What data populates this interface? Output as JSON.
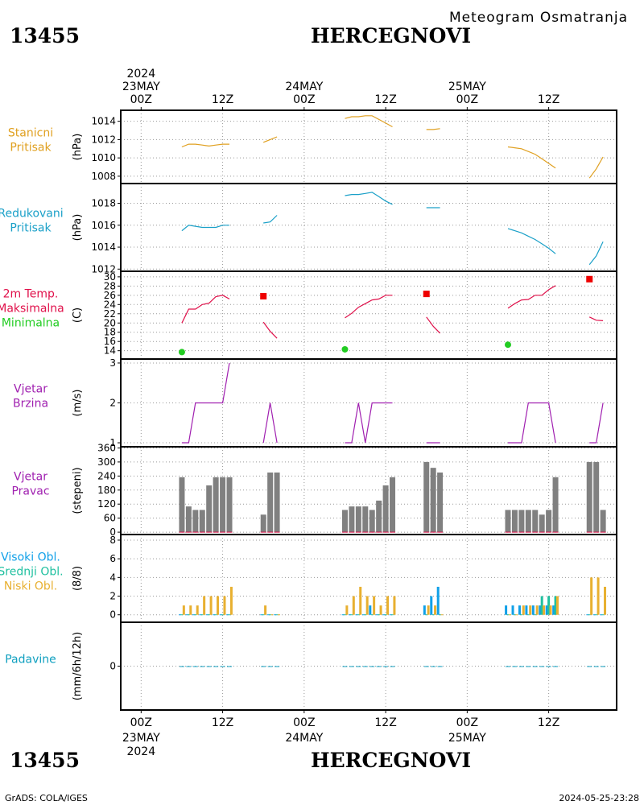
{
  "header": {
    "station_id": "13455",
    "station_name": "HERCEGNOVI",
    "product": "Meteogram Osmatranja"
  },
  "footer": {
    "station_id": "13455",
    "station_name": "HERCEGNOVI",
    "credit": "GrADS: COLA/IGES",
    "timestamp": "2024-05-25-23:28"
  },
  "colors": {
    "station_pressure": "#e0a020",
    "reduced_pressure": "#1aa0c8",
    "temperature": "#e0104a",
    "max_marker": "#ee0000",
    "min_marker": "#22cc22",
    "wind": "#a020b0",
    "wind_dir_bar": "#808080",
    "cloud_low": "#e8b030",
    "cloud_mid": "#20c0a0",
    "cloud_high": "#10a0e8",
    "precip": "#10a0c0"
  },
  "time_axis": {
    "top_ticks": [
      "00Z",
      "12Z",
      "00Z",
      "12Z",
      "00Z",
      "12Z"
    ],
    "top_dates": [
      {
        "hour": 0,
        "lines": [
          "2024",
          "23MAY"
        ]
      },
      {
        "hour": 24,
        "lines": [
          "24MAY"
        ]
      },
      {
        "hour": 48,
        "lines": [
          "25MAY"
        ]
      }
    ],
    "bottom_dates": [
      {
        "hour": 0,
        "lines": [
          "23MAY",
          "2024"
        ]
      },
      {
        "hour": 24,
        "lines": [
          "24MAY"
        ]
      },
      {
        "hour": 48,
        "lines": [
          "25MAY"
        ]
      }
    ],
    "tick_hours": [
      0,
      12,
      24,
      36,
      48,
      60
    ],
    "range_hours": [
      -3,
      70
    ]
  },
  "chart_data": [
    {
      "type": "line",
      "panel": "station_pressure",
      "label_lines": [
        "Stanicni",
        "Pritisak"
      ],
      "ylabel": "(hPa)",
      "ylim": [
        1007.2,
        1015.2
      ],
      "yticks": [
        1008,
        1010,
        1012,
        1014
      ],
      "segments": [
        {
          "x": [
            6,
            7,
            8,
            9,
            10,
            11,
            12,
            13
          ],
          "y": [
            1011.2,
            1011.5,
            1011.5,
            1011.4,
            1011.3,
            1011.4,
            1011.5,
            1011.5
          ]
        },
        {
          "x": [
            18,
            19,
            20
          ],
          "y": [
            1011.7,
            1012.0,
            1012.3
          ]
        },
        {
          "x": [
            30,
            31,
            32,
            33,
            34,
            35,
            36,
            37
          ],
          "y": [
            1014.3,
            1014.5,
            1014.5,
            1014.6,
            1014.6,
            1014.2,
            1013.8,
            1013.4
          ]
        },
        {
          "x": [
            42,
            43,
            44
          ],
          "y": [
            1013.1,
            1013.1,
            1013.2
          ]
        },
        {
          "x": [
            54,
            55,
            56,
            57,
            58,
            59,
            60,
            61
          ],
          "y": [
            1011.2,
            1011.1,
            1011.0,
            1010.7,
            1010.4,
            1009.9,
            1009.4,
            1008.9
          ]
        },
        {
          "x": [
            66,
            67,
            68
          ],
          "y": [
            1007.8,
            1008.8,
            1010.1
          ]
        }
      ]
    },
    {
      "type": "line",
      "panel": "reduced_pressure",
      "label_lines": [
        "Redukovani",
        "Pritisak"
      ],
      "ylabel": "(hPa)",
      "ylim": [
        1011.8,
        1019.8
      ],
      "yticks": [
        1012,
        1014,
        1016,
        1018
      ],
      "segments": [
        {
          "x": [
            6,
            7,
            8,
            9,
            10,
            11,
            12,
            13
          ],
          "y": [
            1015.5,
            1016.0,
            1015.9,
            1015.8,
            1015.8,
            1015.8,
            1016.0,
            1016.0
          ]
        },
        {
          "x": [
            18,
            19,
            20
          ],
          "y": [
            1016.2,
            1016.3,
            1016.9
          ]
        },
        {
          "x": [
            30,
            31,
            32,
            33,
            34,
            35,
            36,
            37
          ],
          "y": [
            1018.7,
            1018.8,
            1018.8,
            1018.9,
            1019.0,
            1018.6,
            1018.2,
            1017.9
          ]
        },
        {
          "x": [
            42,
            43,
            44
          ],
          "y": [
            1017.6,
            1017.6,
            1017.6
          ]
        },
        {
          "x": [
            54,
            55,
            56,
            57,
            58,
            59,
            60,
            61
          ],
          "y": [
            1015.7,
            1015.5,
            1015.3,
            1015.0,
            1014.7,
            1014.3,
            1013.9,
            1013.4
          ]
        },
        {
          "x": [
            66,
            67,
            68
          ],
          "y": [
            1012.4,
            1013.2,
            1014.5
          ]
        }
      ]
    },
    {
      "type": "line",
      "panel": "temperature",
      "label_lines": [
        "2m Temp.",
        "Maksimalna",
        "Minimalna"
      ],
      "ylabel": "(C)",
      "ylim": [
        12.2,
        31.2
      ],
      "yticks": [
        14,
        16,
        18,
        20,
        22,
        24,
        26,
        28,
        30
      ],
      "segments": [
        {
          "x": [
            6,
            7,
            8,
            9,
            10,
            11,
            12,
            13
          ],
          "y": [
            20.0,
            23.0,
            23.0,
            24.0,
            24.3,
            25.7,
            26.0,
            25.2
          ]
        },
        {
          "x": [
            18,
            19,
            20
          ],
          "y": [
            20.2,
            18.2,
            16.7
          ]
        },
        {
          "x": [
            30,
            31,
            32,
            33,
            34,
            35,
            36,
            37
          ],
          "y": [
            21.1,
            22.1,
            23.4,
            24.2,
            25.0,
            25.2,
            26.0,
            26.0
          ]
        },
        {
          "x": [
            42,
            43,
            44
          ],
          "y": [
            21.3,
            19.3,
            17.8
          ]
        },
        {
          "x": [
            54,
            55,
            56,
            57,
            58,
            59,
            60,
            61
          ],
          "y": [
            23.2,
            24.2,
            25.0,
            25.1,
            26.0,
            26.0,
            27.2,
            28.1
          ]
        },
        {
          "x": [
            66,
            67,
            68
          ],
          "y": [
            21.3,
            20.6,
            20.5
          ]
        }
      ],
      "max_points": [
        {
          "x": 18,
          "y": 25.8
        },
        {
          "x": 42,
          "y": 26.3
        },
        {
          "x": 66,
          "y": 29.5
        }
      ],
      "min_points": [
        {
          "x": 6,
          "y": 13.7
        },
        {
          "x": 30,
          "y": 14.3
        },
        {
          "x": 54,
          "y": 15.3
        }
      ]
    },
    {
      "type": "line",
      "panel": "wind_speed",
      "label_lines": [
        "Vjetar",
        "Brzina"
      ],
      "ylabel": "(m/s)",
      "ylim": [
        0.9,
        3.1
      ],
      "yticks": [
        1,
        2,
        3
      ],
      "segments": [
        {
          "x": [
            6,
            7,
            8,
            9,
            10,
            11,
            12,
            13
          ],
          "y": [
            1,
            1,
            2,
            2,
            2,
            2,
            2,
            3
          ]
        },
        {
          "x": [
            18,
            19,
            20
          ],
          "y": [
            1,
            2,
            1
          ]
        },
        {
          "x": [
            30,
            31,
            32,
            33,
            34,
            35,
            36,
            37
          ],
          "y": [
            1,
            1,
            2,
            1,
            2,
            2,
            2,
            2
          ]
        },
        {
          "x": [
            42,
            43,
            44
          ],
          "y": [
            1,
            1,
            1
          ]
        },
        {
          "x": [
            54,
            55,
            56,
            57,
            58,
            59,
            60,
            61
          ],
          "y": [
            1,
            1,
            1,
            2,
            2,
            2,
            2,
            1
          ]
        },
        {
          "x": [
            66,
            67,
            68
          ],
          "y": [
            1,
            1,
            2
          ]
        }
      ]
    },
    {
      "type": "bar",
      "panel": "wind_direction",
      "label_lines": [
        "Vjetar",
        "Pravac"
      ],
      "ylabel": "(stepeni)",
      "ylim": [
        -10,
        365
      ],
      "yticks": [
        0,
        60,
        120,
        180,
        240,
        300,
        360
      ],
      "x": [
        6,
        7,
        8,
        9,
        10,
        11,
        12,
        13,
        18,
        19,
        20,
        30,
        31,
        32,
        33,
        34,
        35,
        36,
        37,
        42,
        43,
        44,
        54,
        55,
        56,
        57,
        58,
        59,
        60,
        61,
        66,
        67,
        68
      ],
      "values": [
        235,
        110,
        95,
        95,
        200,
        235,
        235,
        235,
        75,
        255,
        255,
        95,
        110,
        110,
        110,
        95,
        135,
        200,
        235,
        300,
        275,
        255,
        95,
        95,
        95,
        95,
        95,
        75,
        95,
        235,
        300,
        300,
        95
      ]
    },
    {
      "type": "bar",
      "panel": "clouds",
      "label_lines": [
        "Visoki Obl.",
        "Srednji Obl.",
        "Niski Obl."
      ],
      "ylabel": "(8/8)",
      "ylim": [
        -0.8,
        8.6
      ],
      "yticks": [
        0,
        2,
        4,
        6,
        8
      ],
      "x": [
        6,
        7,
        8,
        9,
        10,
        11,
        12,
        13,
        18,
        19,
        20,
        30,
        31,
        32,
        33,
        34,
        35,
        36,
        37,
        42,
        43,
        44,
        54,
        55,
        56,
        57,
        58,
        59,
        60,
        61,
        66,
        67,
        68
      ],
      "series": [
        {
          "name": "Visoki Obl.",
          "values": [
            0,
            0,
            0,
            0,
            0,
            0,
            0,
            0,
            0,
            0,
            0,
            0,
            0,
            0,
            0,
            1,
            0,
            0,
            0,
            1,
            2,
            3,
            1,
            1,
            1,
            1,
            1,
            1,
            1,
            1,
            0,
            0,
            0
          ]
        },
        {
          "name": "Srednji Obl.",
          "values": [
            0,
            0,
            0,
            0,
            0,
            0,
            0,
            0,
            0,
            0,
            0,
            0,
            0,
            0,
            0,
            0,
            0,
            0,
            0,
            0,
            0,
            0,
            0,
            0,
            0,
            0,
            0,
            2,
            2,
            2,
            0,
            0,
            0
          ]
        },
        {
          "name": "Niski Obl.",
          "values": [
            1,
            1,
            1,
            2,
            2,
            2,
            2,
            3,
            1,
            0,
            0,
            1,
            2,
            3,
            2,
            2,
            1,
            2,
            2,
            1,
            1,
            0,
            0,
            0,
            1,
            1,
            1,
            1,
            1,
            2,
            4,
            4,
            3
          ]
        }
      ]
    },
    {
      "type": "bar",
      "panel": "precipitation",
      "label_lines": [
        "Padavine"
      ],
      "ylabel": "(mm/6h/12h)",
      "ylim": [
        -5,
        5
      ],
      "yticks": [
        0
      ],
      "x": [
        6,
        7,
        8,
        9,
        10,
        11,
        12,
        13,
        18,
        19,
        20,
        30,
        31,
        32,
        33,
        34,
        35,
        36,
        37,
        42,
        43,
        44,
        54,
        55,
        56,
        57,
        58,
        59,
        60,
        61,
        66,
        67,
        68
      ],
      "values": [
        0,
        0,
        0,
        0,
        0,
        0,
        0,
        0,
        0,
        0,
        0,
        0,
        0,
        0,
        0,
        0,
        0,
        0,
        0,
        0,
        0,
        0,
        0,
        0,
        0,
        0,
        0,
        0,
        0,
        0,
        0,
        0,
        0
      ]
    }
  ]
}
